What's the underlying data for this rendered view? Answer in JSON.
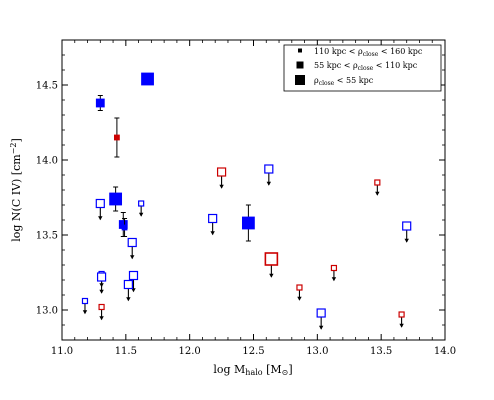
{
  "chart_data": {
    "type": "scatter",
    "xlabel": "log M_halo [M⊙]",
    "ylabel": "log N(C IV) [cm⁻²]",
    "xlim": [
      11.0,
      14.0
    ],
    "ylim": [
      12.8,
      14.8
    ],
    "xticks": [
      "11.0",
      "11.5",
      "12.0",
      "12.5",
      "13.0",
      "13.5",
      "14.0"
    ],
    "yticks": [
      "13.0",
      "13.5",
      "14.0",
      "14.5"
    ],
    "grid": false,
    "legend_position": "top-right",
    "legend": [
      {
        "text": "110 kpc < ρ_close < 160 kpc",
        "marker": "small"
      },
      {
        "text": "55 kpc < ρ_close < 110 kpc",
        "marker": "medium"
      },
      {
        "text": "ρ_close < 55 kpc",
        "marker": "large"
      }
    ],
    "colors": {
      "blue": "#0000ff",
      "red": "#cc0000",
      "black": "#000000"
    },
    "points": [
      {
        "x": 11.67,
        "y": 14.54,
        "size": "large",
        "color": "blue",
        "filled": true,
        "upper_limit": false
      },
      {
        "x": 11.3,
        "y": 14.38,
        "size": "medium",
        "color": "blue",
        "filled": true,
        "upper_limit": false,
        "err": [
          0.05,
          0.05
        ]
      },
      {
        "x": 11.43,
        "y": 14.15,
        "size": "small",
        "color": "red",
        "filled": true,
        "upper_limit": false,
        "err": [
          0.13,
          0.13
        ]
      },
      {
        "x": 11.42,
        "y": 13.74,
        "size": "large",
        "color": "blue",
        "filled": true,
        "upper_limit": false,
        "err": [
          0.08,
          0.08
        ]
      },
      {
        "x": 11.48,
        "y": 13.57,
        "size": "medium",
        "color": "blue",
        "filled": true,
        "upper_limit": false,
        "err": [
          0.08,
          0.08
        ]
      },
      {
        "x": 11.49,
        "y": 13.55,
        "size": "small",
        "color": "blue",
        "filled": true,
        "upper_limit": false,
        "err": [
          0.06,
          0.06
        ]
      },
      {
        "x": 12.46,
        "y": 13.58,
        "size": "large",
        "color": "blue",
        "filled": true,
        "upper_limit": false,
        "err": [
          0.12,
          0.12
        ]
      },
      {
        "x": 11.3,
        "y": 13.71,
        "size": "medium",
        "color": "blue",
        "filled": false,
        "upper_limit": true
      },
      {
        "x": 11.62,
        "y": 13.71,
        "size": "small",
        "color": "blue",
        "filled": false,
        "upper_limit": true
      },
      {
        "x": 11.55,
        "y": 13.45,
        "size": "medium",
        "color": "blue",
        "filled": false,
        "upper_limit": true
      },
      {
        "x": 12.18,
        "y": 13.61,
        "size": "medium",
        "color": "blue",
        "filled": false,
        "upper_limit": true
      },
      {
        "x": 12.62,
        "y": 13.94,
        "size": "medium",
        "color": "blue",
        "filled": false,
        "upper_limit": true
      },
      {
        "x": 13.7,
        "y": 13.56,
        "size": "medium",
        "color": "blue",
        "filled": false,
        "upper_limit": true
      },
      {
        "x": 11.31,
        "y": 13.24,
        "size": "small",
        "color": "blue",
        "filled": false,
        "upper_limit": true
      },
      {
        "x": 11.31,
        "y": 13.22,
        "size": "medium",
        "color": "blue",
        "filled": false,
        "upper_limit": true
      },
      {
        "x": 11.56,
        "y": 13.23,
        "size": "medium",
        "color": "blue",
        "filled": false,
        "upper_limit": true
      },
      {
        "x": 11.52,
        "y": 13.17,
        "size": "medium",
        "color": "blue",
        "filled": false,
        "upper_limit": true
      },
      {
        "x": 11.18,
        "y": 13.06,
        "size": "small",
        "color": "blue",
        "filled": false,
        "upper_limit": true
      },
      {
        "x": 13.03,
        "y": 12.98,
        "size": "medium",
        "color": "blue",
        "filled": false,
        "upper_limit": true
      },
      {
        "x": 12.25,
        "y": 13.92,
        "size": "medium",
        "color": "red",
        "filled": false,
        "upper_limit": true
      },
      {
        "x": 13.47,
        "y": 13.85,
        "size": "small",
        "color": "red",
        "filled": false,
        "upper_limit": true
      },
      {
        "x": 12.64,
        "y": 13.34,
        "size": "large",
        "color": "red",
        "filled": false,
        "upper_limit": true
      },
      {
        "x": 13.13,
        "y": 13.28,
        "size": "small",
        "color": "red",
        "filled": false,
        "upper_limit": true
      },
      {
        "x": 12.86,
        "y": 13.15,
        "size": "small",
        "color": "red",
        "filled": false,
        "upper_limit": true
      },
      {
        "x": 11.31,
        "y": 13.02,
        "size": "small",
        "color": "red",
        "filled": false,
        "upper_limit": true
      },
      {
        "x": 13.66,
        "y": 12.97,
        "size": "small",
        "color": "red",
        "filled": false,
        "upper_limit": true
      }
    ]
  }
}
